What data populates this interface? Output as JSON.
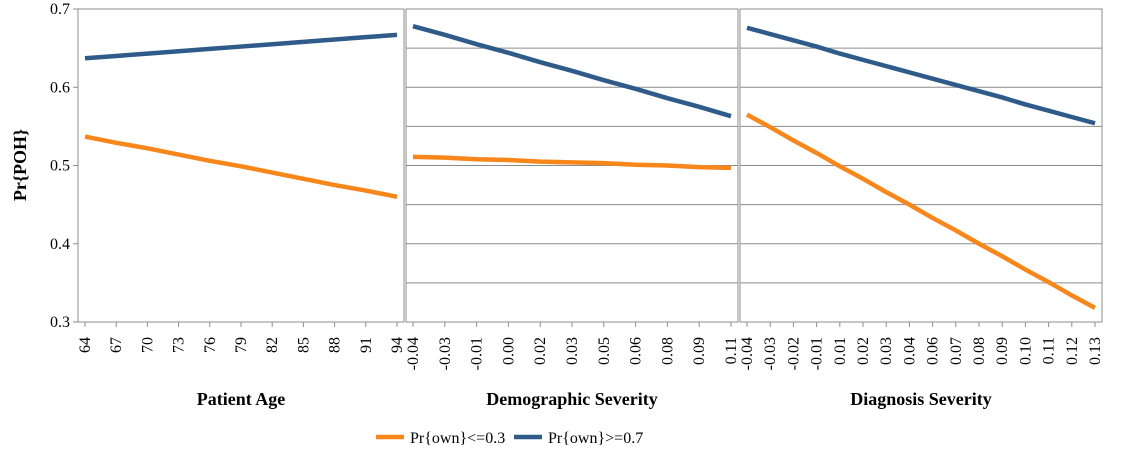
{
  "chart_data": [
    {
      "type": "line",
      "y_label": "Pr{POH}",
      "x_label": "Patient Age",
      "categories": [
        "64",
        "67",
        "70",
        "73",
        "76",
        "79",
        "82",
        "85",
        "88",
        "91",
        "94"
      ],
      "series": [
        {
          "name": "Pr{own}<=0.3",
          "color": "#f7861b",
          "values": [
            0.537,
            0.529,
            0.522,
            0.514,
            0.506,
            0.499,
            0.491,
            0.483,
            0.475,
            0.468,
            0.46
          ]
        },
        {
          "name": "Pr{own}>=0.7",
          "color": "#2e5b8a",
          "values": [
            0.637,
            0.64,
            0.643,
            0.646,
            0.649,
            0.652,
            0.655,
            0.658,
            0.661,
            0.664,
            0.667
          ]
        }
      ],
      "ylim": [
        0.3,
        0.7
      ],
      "yticks": [
        0.3,
        0.4,
        0.5,
        0.6,
        0.7
      ],
      "grid": false
    },
    {
      "type": "line",
      "x_label": "Demographic Severity",
      "categories": [
        "-0.04",
        "-0.03",
        "-0.01",
        "0.00",
        "0.02",
        "0.03",
        "0.05",
        "0.06",
        "0.08",
        "0.09",
        "0.11"
      ],
      "series": [
        {
          "color": "#f7861b",
          "values": [
            0.511,
            0.51,
            0.508,
            0.507,
            0.505,
            0.504,
            0.503,
            0.501,
            0.5,
            0.498,
            0.497
          ]
        },
        {
          "color": "#2e5b8a",
          "values": [
            0.678,
            0.667,
            0.655,
            0.644,
            0.632,
            0.621,
            0.609,
            0.598,
            0.586,
            0.575,
            0.563
          ]
        }
      ],
      "ylim": [
        0.3,
        0.7
      ],
      "yticks": [
        0.3,
        0.35,
        0.4,
        0.45,
        0.5,
        0.55,
        0.6,
        0.65,
        0.7
      ],
      "grid": true
    },
    {
      "type": "line",
      "x_label": "Diagnosis Severity",
      "categories": [
        "-0.04",
        "-0.03",
        "-0.02",
        "-0.01",
        "0.01",
        "0.02",
        "0.03",
        "0.04",
        "0.06",
        "0.07",
        "0.08",
        "0.09",
        "0.10",
        "0.11",
        "0.12",
        "0.13"
      ],
      "series": [
        {
          "color": "#f7861b",
          "values": [
            0.565,
            0.549,
            0.532,
            0.516,
            0.499,
            0.483,
            0.466,
            0.45,
            0.433,
            0.417,
            0.4,
            0.384,
            0.367,
            0.351,
            0.334,
            0.318
          ]
        },
        {
          "color": "#2e5b8a",
          "values": [
            0.676,
            0.668,
            0.66,
            0.652,
            0.643,
            0.635,
            0.627,
            0.619,
            0.611,
            0.603,
            0.595,
            0.587,
            0.578,
            0.57,
            0.562,
            0.554
          ]
        }
      ],
      "ylim": [
        0.3,
        0.7
      ],
      "yticks": [
        0.3,
        0.35,
        0.4,
        0.45,
        0.5,
        0.55,
        0.6,
        0.65,
        0.7
      ],
      "grid": true
    }
  ]
}
